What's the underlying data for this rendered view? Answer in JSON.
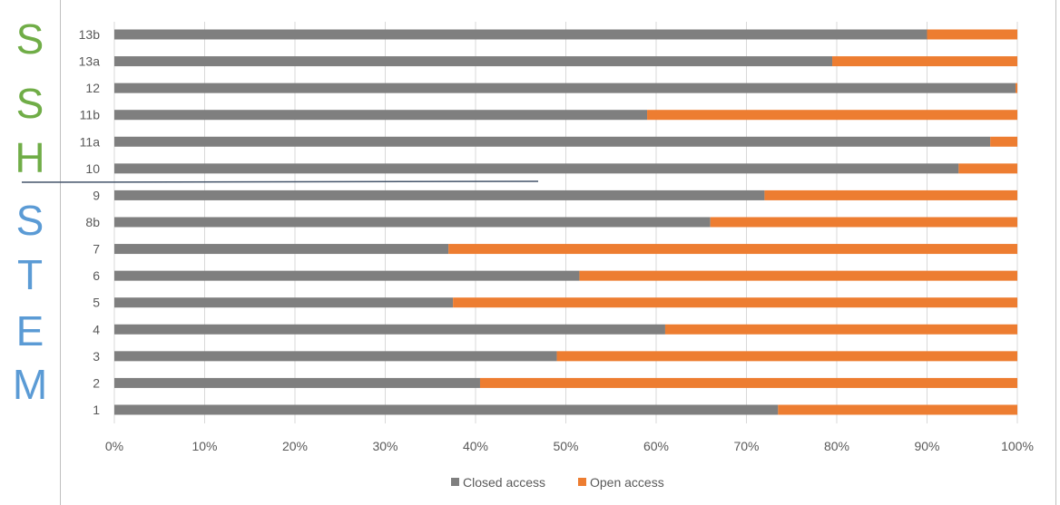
{
  "side_labels": {
    "shh": {
      "letters": [
        "S",
        "S",
        "H"
      ],
      "color": "#70ad47"
    },
    "stem": {
      "letters": [
        "S",
        "T",
        "E",
        "M"
      ],
      "color": "#5b9bd5"
    }
  },
  "chart_data": {
    "type": "bar",
    "orientation": "horizontal",
    "stacked": "percent",
    "categories": [
      "1",
      "2",
      "3",
      "4",
      "5",
      "6",
      "7",
      "8b",
      "9",
      "10",
      "11a",
      "11b",
      "12",
      "13a",
      "13b"
    ],
    "series": [
      {
        "name": "Closed access",
        "color": "#7f7f7f",
        "values": [
          73.5,
          40.5,
          49,
          61,
          37.5,
          51.5,
          37,
          66,
          72,
          93.5,
          97,
          59,
          99.8,
          79.5,
          90
        ]
      },
      {
        "name": "Open access",
        "color": "#ed7d31",
        "values": [
          26.5,
          59.5,
          51,
          39,
          62.5,
          48.5,
          63,
          34,
          28,
          6.5,
          3,
          41,
          0.2,
          20.5,
          10
        ]
      }
    ],
    "x_ticks": [
      "0%",
      "10%",
      "20%",
      "30%",
      "40%",
      "50%",
      "60%",
      "70%",
      "80%",
      "90%",
      "100%"
    ],
    "xlim": [
      0,
      100
    ],
    "grid": "vertical",
    "legend": "bottom",
    "title": "",
    "xlabel": "",
    "ylabel": ""
  }
}
